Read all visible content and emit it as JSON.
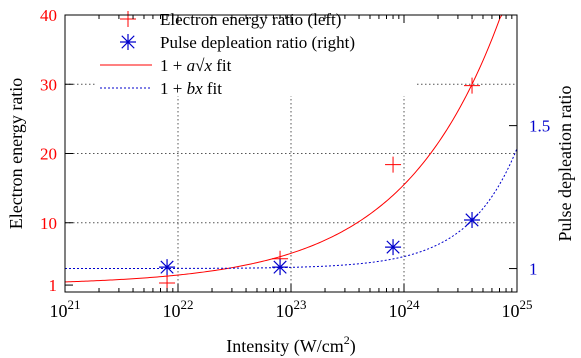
{
  "chart_data": {
    "type": "scatter",
    "x_scale": "log",
    "x_label": "Intensity (W/cm²)",
    "x_range": [
      1e+21,
      1e+25
    ],
    "x_ticks": [
      {
        "value": 1e+21,
        "base": "10",
        "exp": "21"
      },
      {
        "value": 1e+22,
        "base": "10",
        "exp": "22"
      },
      {
        "value": 1e+23,
        "base": "10",
        "exp": "23"
      },
      {
        "value": 1e+24,
        "base": "10",
        "exp": "24"
      },
      {
        "value": 1e+25,
        "base": "10",
        "exp": "25"
      }
    ],
    "y_left": {
      "label": "Electron energy ratio",
      "range": [
        0,
        40
      ],
      "ticks": [
        "1",
        "10",
        "20",
        "30",
        "40"
      ],
      "tick_values": [
        1,
        10,
        20,
        30,
        40
      ],
      "color": "#ff0000"
    },
    "y_right": {
      "label": "Pulse depleation ratio",
      "range": [
        0.918,
        1.887
      ],
      "ticks": [
        "1",
        "1.5"
      ],
      "tick_values": [
        1,
        1.5
      ],
      "color": "#0000cc"
    },
    "grid": true,
    "legend_position": "top-left",
    "series": [
      {
        "name": "Electron energy ratio (left)",
        "axis": "left",
        "marker": "plus",
        "color": "#ff0000",
        "points": [
          {
            "x": 8e+21,
            "y": 1.3
          },
          {
            "x": 8e+22,
            "y": 4.8
          },
          {
            "x": 8e+23,
            "y": 18.4
          },
          {
            "x": 4e+24,
            "y": 29.8
          }
        ]
      },
      {
        "name": "Pulse depleation ratio (right)",
        "axis": "right",
        "marker": "asterisk",
        "color": "#0000cc",
        "points": [
          {
            "x": 8e+21,
            "y": 1.005
          },
          {
            "x": 8e+22,
            "y": 1.005
          },
          {
            "x": 8e+23,
            "y": 1.075
          },
          {
            "x": 4e+24,
            "y": 1.17
          }
        ]
      },
      {
        "name": "1 + a√x fit",
        "axis": "left",
        "style": "solid",
        "color": "#ff0000",
        "fit": {
          "form": "1 + a*sqrt(x)",
          "a": 1.45e-11
        }
      },
      {
        "name": "1 + bx fit",
        "axis": "right",
        "style": "dotted",
        "color": "#0000cc",
        "fit": {
          "form": "1 + b*x",
          "b": 4.2e-26
        }
      }
    ]
  },
  "legend": {
    "items": [
      {
        "text": "Electron energy ratio (left)"
      },
      {
        "text": "Pulse depleation ratio (right)"
      },
      {
        "pre": "1 + ",
        "var": "a",
        "sqrt": "x",
        "post": " fit"
      },
      {
        "pre": "1 + ",
        "var": "bx",
        "post": " fit"
      }
    ]
  }
}
